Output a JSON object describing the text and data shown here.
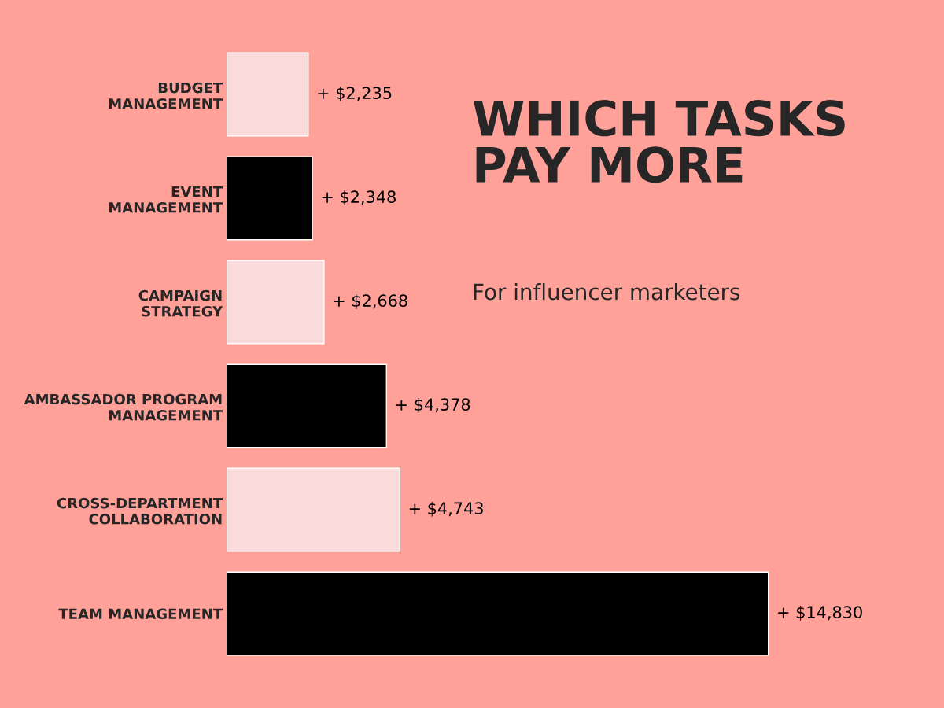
{
  "chart_data": {
    "type": "bar",
    "orientation": "horizontal",
    "title": "WHICH TASKS\nPAY MORE",
    "subtitle": "For influencer marketers",
    "categories": [
      "BUDGET\nMANAGEMENT",
      "EVENT\nMANAGEMENT",
      "CAMPAIGN\nSTRATEGY",
      "AMBASSADOR PROGRAM\nMANAGEMENT",
      "CROSS-DEPARTMENT\nCOLLABORATION",
      "TEAM MANAGEMENT"
    ],
    "values": [
      2235,
      2348,
      2668,
      4378,
      4743,
      14830
    ],
    "value_labels": [
      "+ $2,235",
      "+ $2,348",
      "+ $2,668",
      "+ $4,378",
      "+ $4,743",
      "+ $14,830"
    ],
    "colors": [
      "#ffd6d6",
      "#000000",
      "#ffd6d6",
      "#000000",
      "#ffd6d6",
      "#000000"
    ],
    "grid": false,
    "legend": false,
    "tick_labels": "y"
  }
}
